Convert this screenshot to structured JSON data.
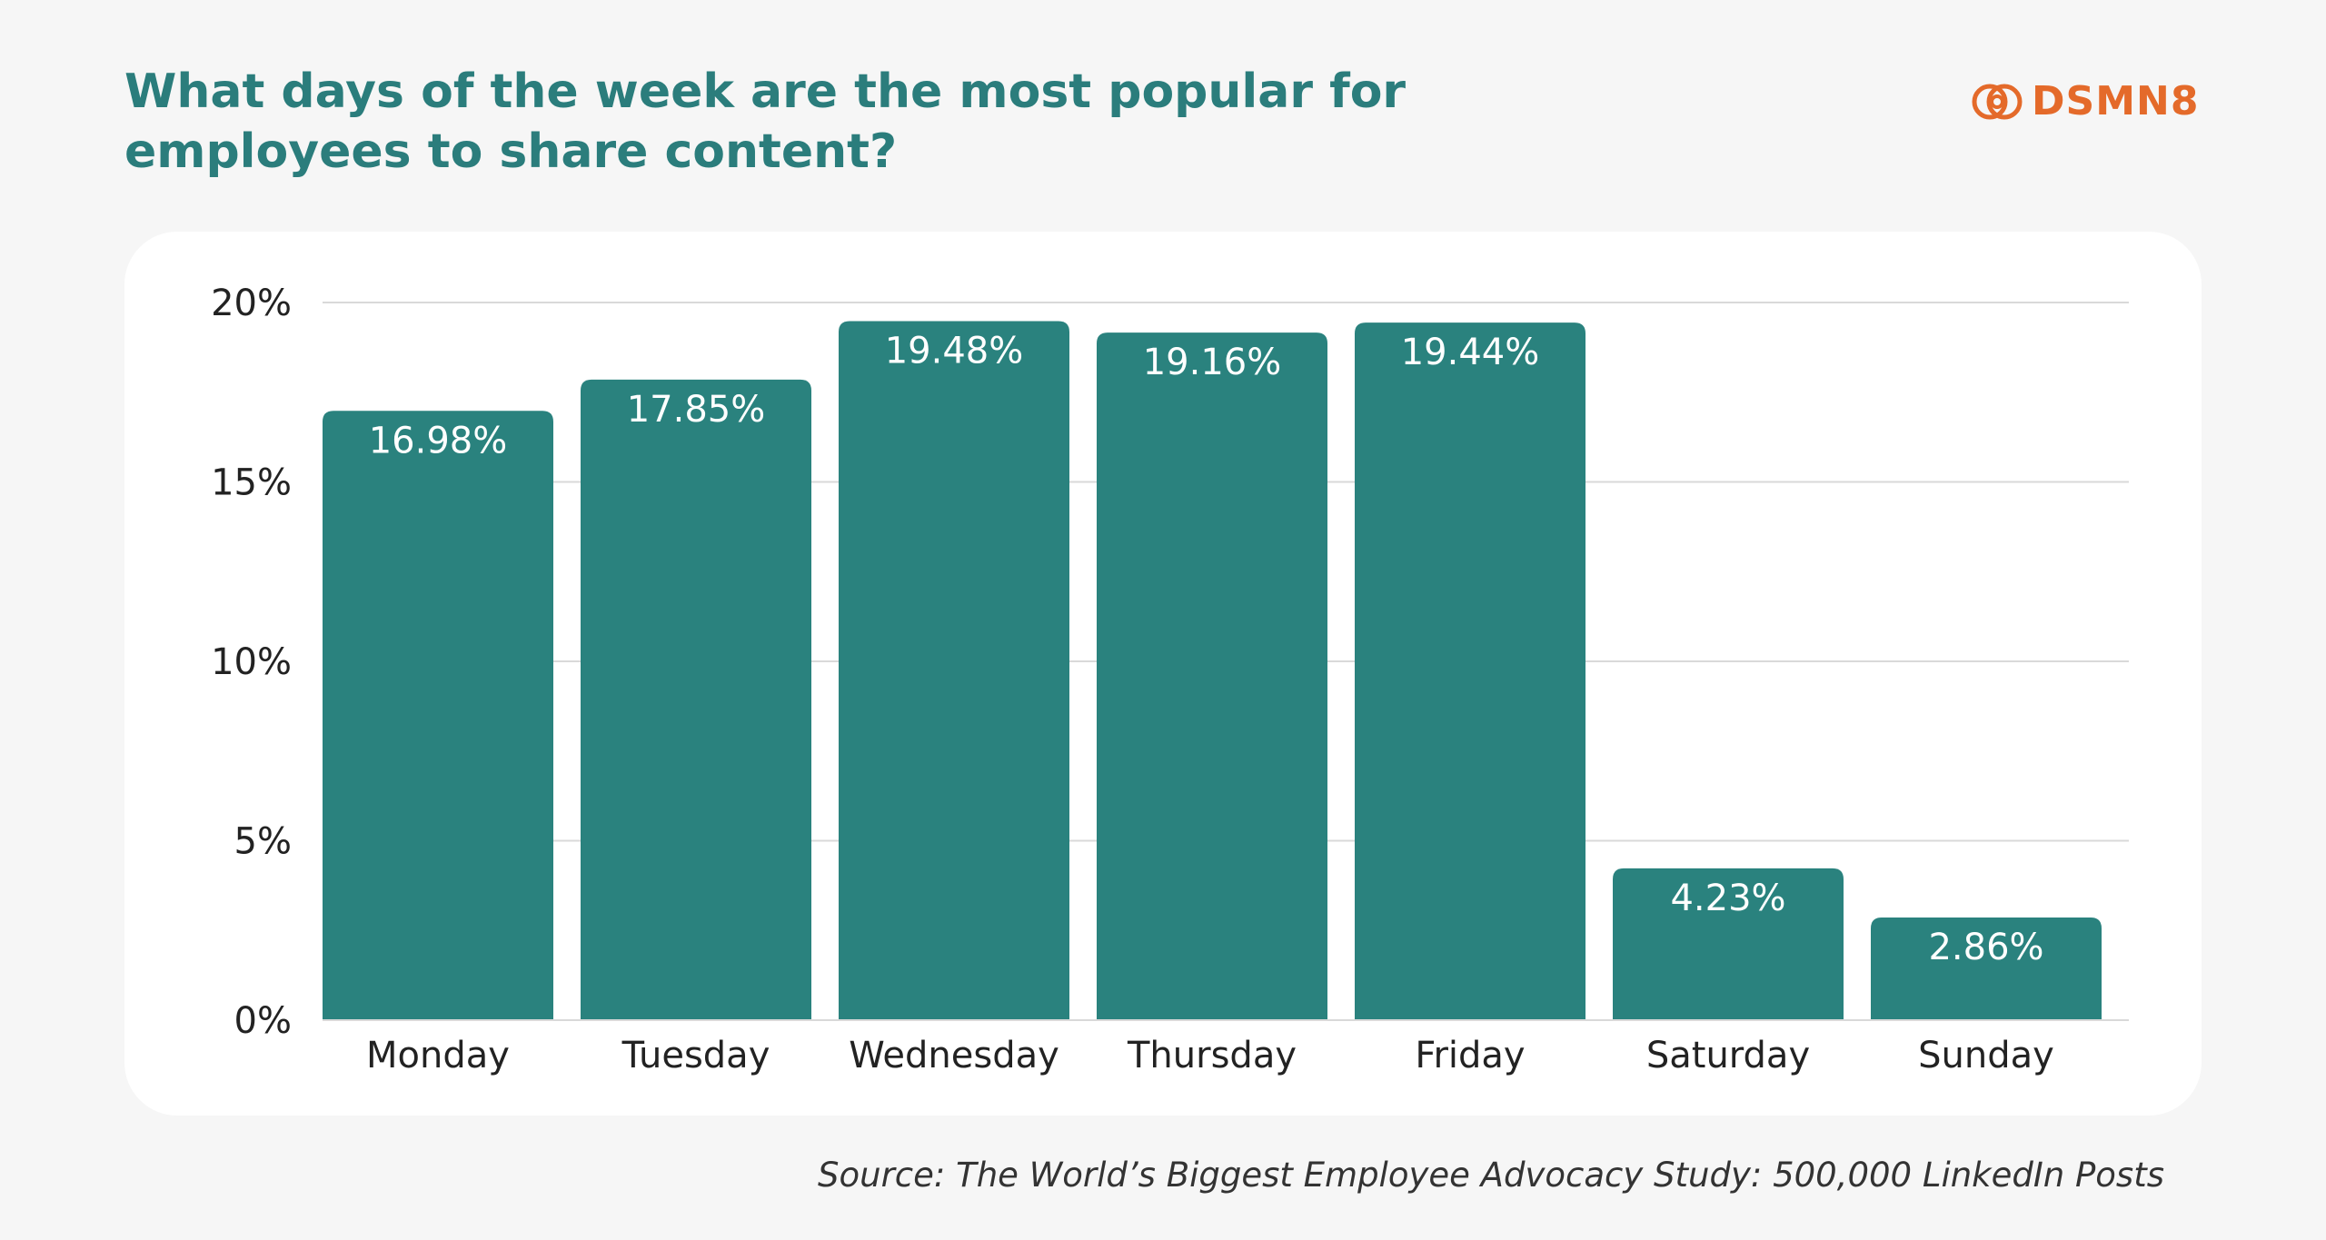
{
  "header": {
    "title": "What days of the week are the most popular for employees to share content?",
    "logo_text": "DSMN8",
    "logo_icon": "dsmn8-interlocking-rings-icon"
  },
  "footer": {
    "source": "Source: The World’s Biggest Employee Advocacy Study: 500,000 LinkedIn Posts"
  },
  "colors": {
    "background": "#f6f6f6",
    "card": "#ffffff",
    "bar": "#2a827e",
    "title": "#2b7d7c",
    "brand": "#e46a2a",
    "grid": "#d9d9d9",
    "text": "#222222",
    "bar_label": "#ffffff"
  },
  "chart_data": {
    "type": "bar",
    "categories": [
      "Monday",
      "Tuesday",
      "Wednesday",
      "Thursday",
      "Friday",
      "Saturday",
      "Sunday"
    ],
    "values": [
      16.98,
      17.85,
      19.48,
      19.16,
      19.44,
      4.23,
      2.86
    ],
    "data_labels": [
      "16.98%",
      "17.85%",
      "19.48%",
      "19.16%",
      "19.44%",
      "4.23%",
      "2.86%"
    ],
    "yticks": [
      0,
      5,
      10,
      15,
      20
    ],
    "ytick_labels": [
      "0%",
      "5%",
      "10%",
      "15%",
      "20%"
    ],
    "ylim": [
      0,
      20
    ],
    "grid": true,
    "legend": "none"
  }
}
